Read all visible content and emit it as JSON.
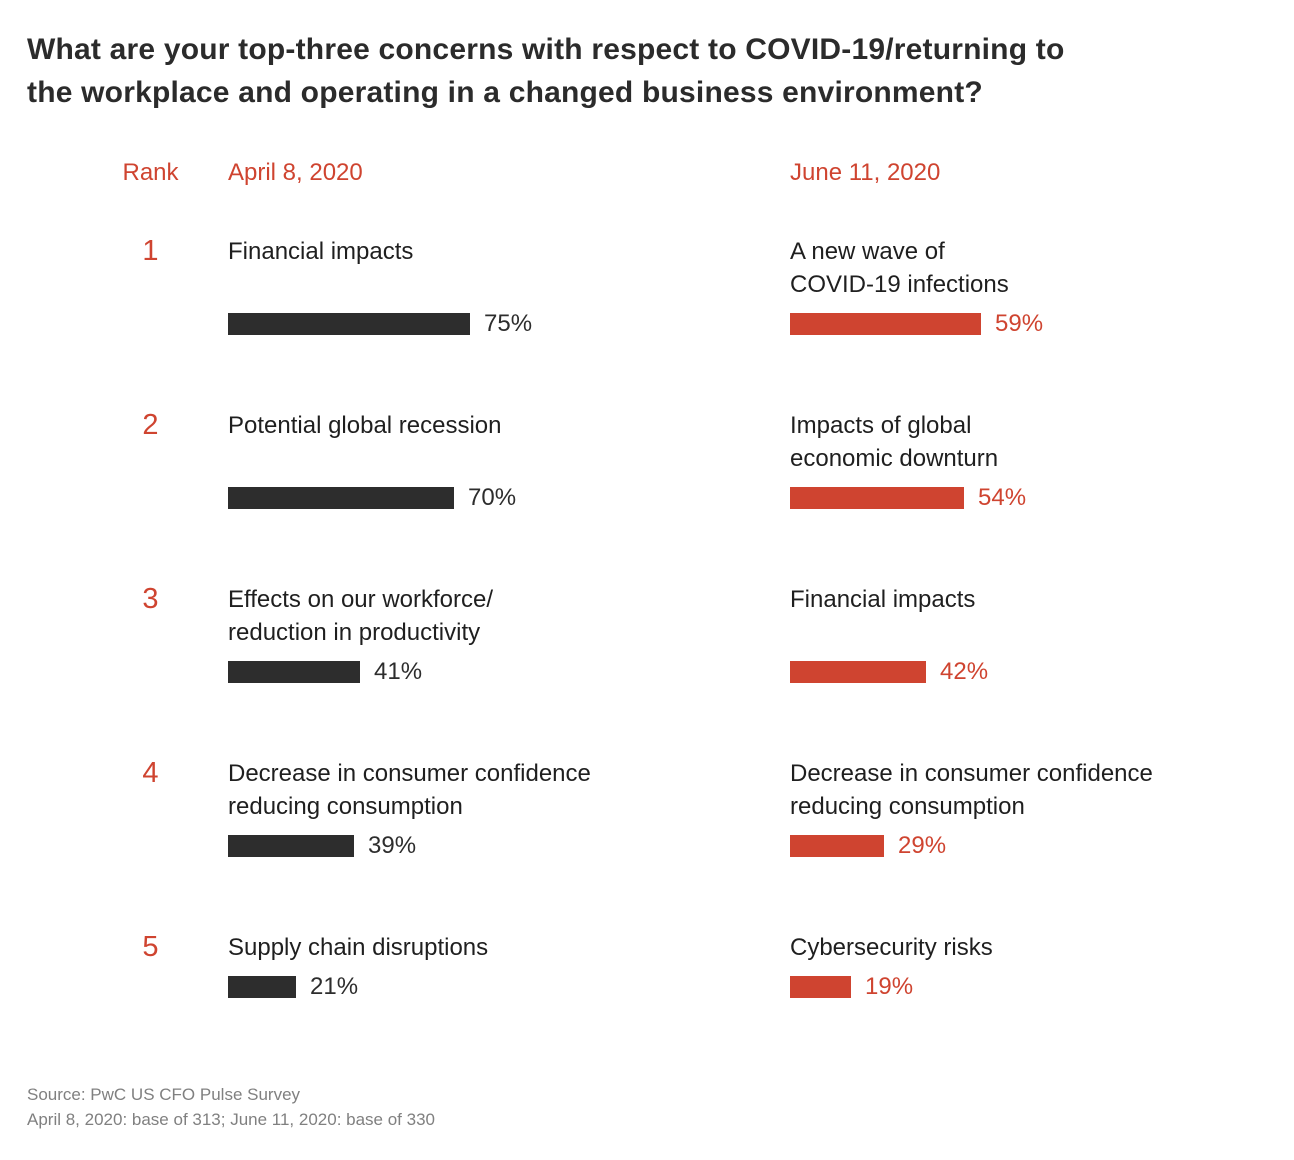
{
  "title": "What are your top-three concerns with respect to COVID-19/returning to\nthe workplace and operating in a changed business environment?",
  "headers": {
    "rank": "Rank",
    "april": "April 8, 2020",
    "june": "June 11, 2020"
  },
  "rows": [
    {
      "rank": "1",
      "april": {
        "label": "Financial impacts",
        "value": 75,
        "value_label": "75%"
      },
      "june": {
        "label": "A new wave of\nCOVID-19 infections",
        "value": 59,
        "value_label": "59%"
      }
    },
    {
      "rank": "2",
      "april": {
        "label": "Potential global recession",
        "value": 70,
        "value_label": "70%"
      },
      "june": {
        "label": "Impacts of global\neconomic downturn",
        "value": 54,
        "value_label": "54%"
      }
    },
    {
      "rank": "3",
      "april": {
        "label": "Effects on our workforce/\nreduction in productivity",
        "value": 41,
        "value_label": "41%"
      },
      "june": {
        "label": "Financial impacts",
        "value": 42,
        "value_label": "42%"
      }
    },
    {
      "rank": "4",
      "april": {
        "label": "Decrease in consumer confidence\nreducing consumption",
        "value": 39,
        "value_label": "39%"
      },
      "june": {
        "label": "Decrease in consumer confidence\nreducing consumption",
        "value": 29,
        "value_label": "29%"
      }
    },
    {
      "rank": "5",
      "april": {
        "label": "Supply chain disruptions",
        "value": 21,
        "value_label": "21%"
      },
      "june": {
        "label": "Cybersecurity risks",
        "value": 19,
        "value_label": "19%"
      }
    }
  ],
  "source": {
    "line1": "Source: PwC US CFO Pulse Survey",
    "line2": "April 8, 2020: base of 313; June 11, 2020: base of 330"
  },
  "colors": {
    "april_bar": "#2d2d2d",
    "june_bar": "#cf4430",
    "accent_text": "#cf4430",
    "title_text": "#2b2b2b",
    "label_text": "#1f1f1f",
    "source_text": "#808080"
  },
  "chart_data": {
    "type": "bar",
    "orientation": "horizontal",
    "title": "What are your top-three concerns with respect to COVID-19/returning to the workplace and operating in a changed business environment?",
    "value_unit": "%",
    "xlim": [
      0,
      100
    ],
    "ranks": [
      1,
      2,
      3,
      4,
      5
    ],
    "series": [
      {
        "name": "April 8, 2020",
        "color": "#2d2d2d",
        "categories": [
          "Financial impacts",
          "Potential global recession",
          "Effects on our workforce/reduction in productivity",
          "Decrease in consumer confidence reducing consumption",
          "Supply chain disruptions"
        ],
        "values": [
          75,
          70,
          41,
          39,
          21
        ]
      },
      {
        "name": "June 11, 2020",
        "color": "#cf4430",
        "categories": [
          "A new wave of COVID-19 infections",
          "Impacts of global economic downturn",
          "Financial impacts",
          "Decrease in consumer confidence reducing consumption",
          "Cybersecurity risks"
        ],
        "values": [
          59,
          54,
          42,
          29,
          19
        ]
      }
    ],
    "source": "Source: PwC US CFO Pulse Survey | April 8, 2020: base of 313; June 11, 2020: base of 330",
    "legend_position": "column-headers",
    "grid": false
  }
}
